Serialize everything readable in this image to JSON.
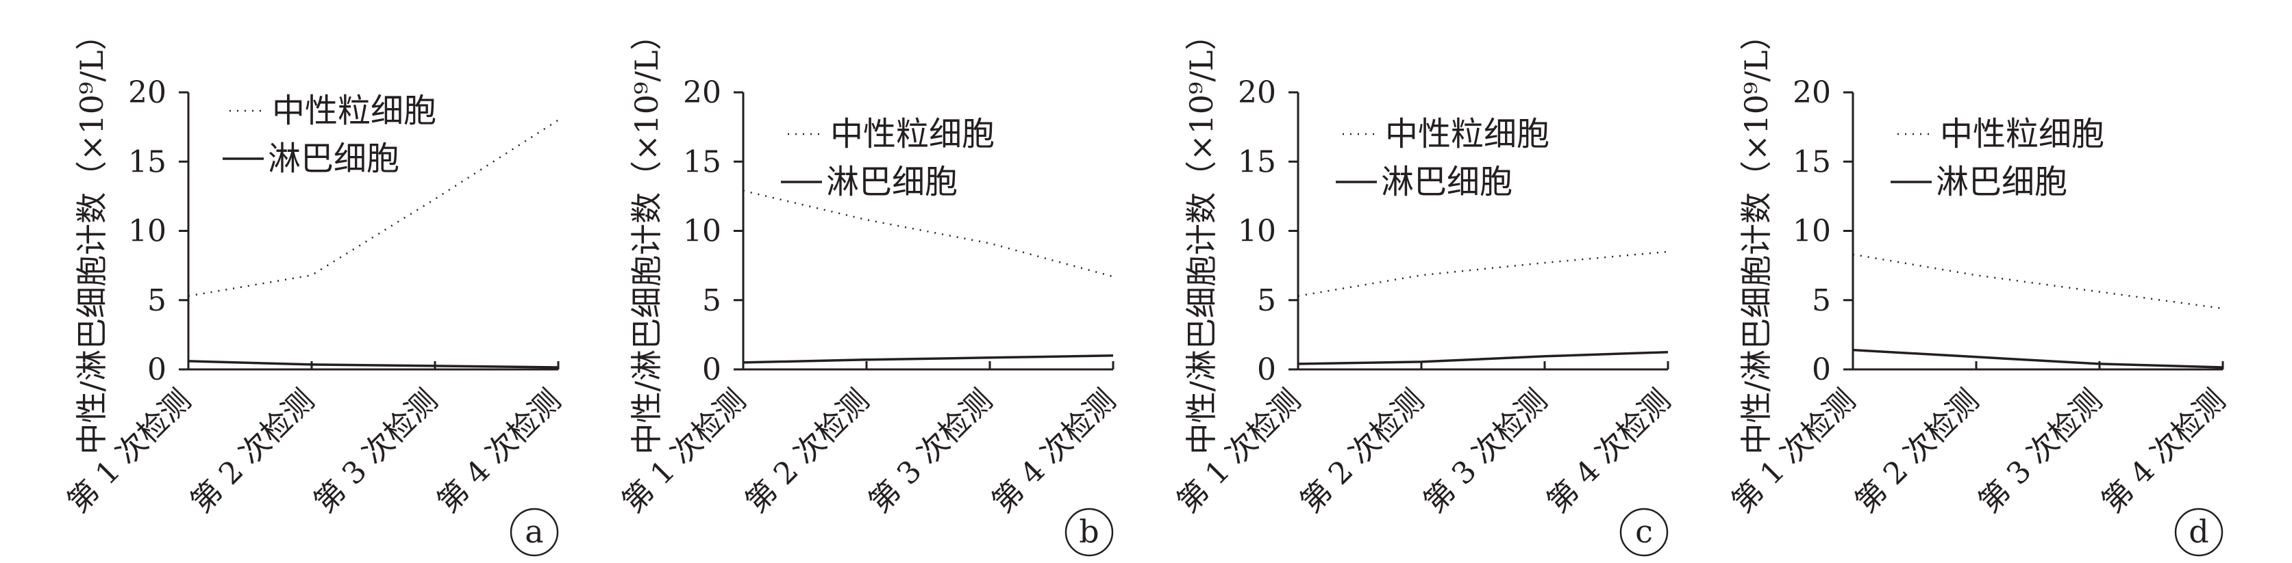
{
  "y_axis_label": "中性/淋巴细胞计数（×10⁹/L）",
  "series_names": [
    "中性粒细胞",
    "淋巴细胞"
  ],
  "categories": [
    "第 1 次检测",
    "第 2 次检测",
    "第 3 次检测",
    "第 4 次检测"
  ],
  "chart_data": [
    {
      "type": "line",
      "panel_label": "a",
      "categories": [
        "第 1 次检测",
        "第 2 次检测",
        "第 3 次检测",
        "第 4 次检测"
      ],
      "ylabel": "中性/淋巴细胞计数（×10⁹/L）",
      "ylim": [
        0,
        20
      ],
      "yticks": [
        "0",
        "5",
        "10",
        "15",
        "20"
      ],
      "legend_position": "top",
      "series": [
        {
          "name": "中性粒细胞",
          "style": "dotted",
          "values": [
            5.3,
            6.8,
            12.3,
            18.0
          ]
        },
        {
          "name": "淋巴细胞",
          "style": "solid",
          "values": [
            0.6,
            0.35,
            0.25,
            0.15
          ]
        }
      ]
    },
    {
      "type": "line",
      "panel_label": "b",
      "categories": [
        "第 1 次检测",
        "第 2 次检测",
        "第 3 次检测",
        "第 4 次检测"
      ],
      "ylabel": "中性/淋巴细胞计数（×10⁹/L）",
      "ylim": [
        0,
        20
      ],
      "yticks": [
        "0",
        "5",
        "10",
        "15",
        "20"
      ],
      "legend_position": "top",
      "series": [
        {
          "name": "中性粒细胞",
          "style": "dotted",
          "values": [
            12.9,
            10.8,
            9.1,
            6.7
          ]
        },
        {
          "name": "淋巴细胞",
          "style": "solid",
          "values": [
            0.5,
            0.7,
            0.85,
            1.0
          ]
        }
      ]
    },
    {
      "type": "line",
      "panel_label": "c",
      "categories": [
        "第 1 次检测",
        "第 2 次检测",
        "第 3 次检测",
        "第 4 次检测"
      ],
      "ylabel": "中性/淋巴细胞计数（×10⁹/L）",
      "ylim": [
        0,
        20
      ],
      "yticks": [
        "0",
        "5",
        "10",
        "15",
        "20"
      ],
      "legend_position": "top",
      "series": [
        {
          "name": "中性粒细胞",
          "style": "dotted",
          "values": [
            5.3,
            6.8,
            7.7,
            8.5
          ]
        },
        {
          "name": "淋巴细胞",
          "style": "solid",
          "values": [
            0.4,
            0.55,
            0.95,
            1.25
          ]
        }
      ]
    },
    {
      "type": "line",
      "panel_label": "d",
      "categories": [
        "第 1 次检测",
        "第 2 次检测",
        "第 3 次检测",
        "第 4 次检测"
      ],
      "ylabel": "中性/淋巴细胞计数（×10⁹/L）",
      "ylim": [
        0,
        20
      ],
      "yticks": [
        "0",
        "5",
        "10",
        "15",
        "20"
      ],
      "legend_position": "top",
      "series": [
        {
          "name": "中性粒细胞",
          "style": "dotted",
          "values": [
            8.3,
            6.8,
            5.6,
            4.4
          ]
        },
        {
          "name": "淋巴细胞",
          "style": "solid",
          "values": [
            1.4,
            0.9,
            0.4,
            0.15
          ]
        }
      ]
    }
  ]
}
